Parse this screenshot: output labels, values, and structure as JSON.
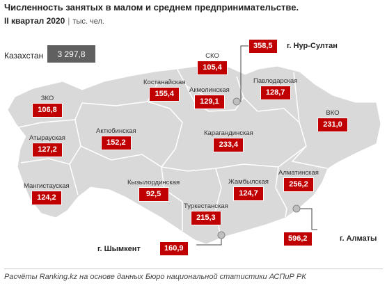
{
  "header": {
    "title": "Численность занятых в малом и среднем предпринимательстве.",
    "period": "II квартал 2020",
    "unit": "тыс. чел."
  },
  "total": {
    "label": "Казахстан",
    "value": "3 297,8"
  },
  "regions": {
    "zko": {
      "name": "ЗКО",
      "value": "106,8"
    },
    "atyrau": {
      "name": "Атырауская",
      "value": "127,2"
    },
    "mangistau": {
      "name": "Мангистауская",
      "value": "124,2"
    },
    "aktobe": {
      "name": "Актюбинская",
      "value": "152,2"
    },
    "kostanay": {
      "name": "Костанайская",
      "value": "155,4"
    },
    "sko": {
      "name": "СКО",
      "value": "105,4"
    },
    "akmola": {
      "name": "Акмолинская",
      "value": "129,1"
    },
    "pavlodar": {
      "name": "Павлодарская",
      "value": "128,7"
    },
    "vko": {
      "name": "ВКО",
      "value": "231,0"
    },
    "karaganda": {
      "name": "Карагандинская",
      "value": "233,4"
    },
    "kyzylorda": {
      "name": "Кызылординская",
      "value": "92,5"
    },
    "zhambyl": {
      "name": "Жамбылская",
      "value": "124,7"
    },
    "almaty_obl": {
      "name": "Алматинская",
      "value": "256,2"
    },
    "turkestan": {
      "name": "Туркестанская",
      "value": "215,3"
    }
  },
  "cities": {
    "nur_sultan": {
      "name": "г. Нур-Султан",
      "value": "358,5"
    },
    "almaty": {
      "name": "г. Алматы",
      "value": "596,2"
    },
    "shymkent": {
      "name": "г. Шымкент",
      "value": "160,9"
    }
  },
  "footer": {
    "source": "Расчёты Ranking.kz на основе данных Бюро национальной статистики АСПиР РК"
  },
  "colors": {
    "value_box": "#c00000",
    "total_box": "#606060",
    "map_fill": "#d9d9d9",
    "region_border": "#ffffff"
  }
}
